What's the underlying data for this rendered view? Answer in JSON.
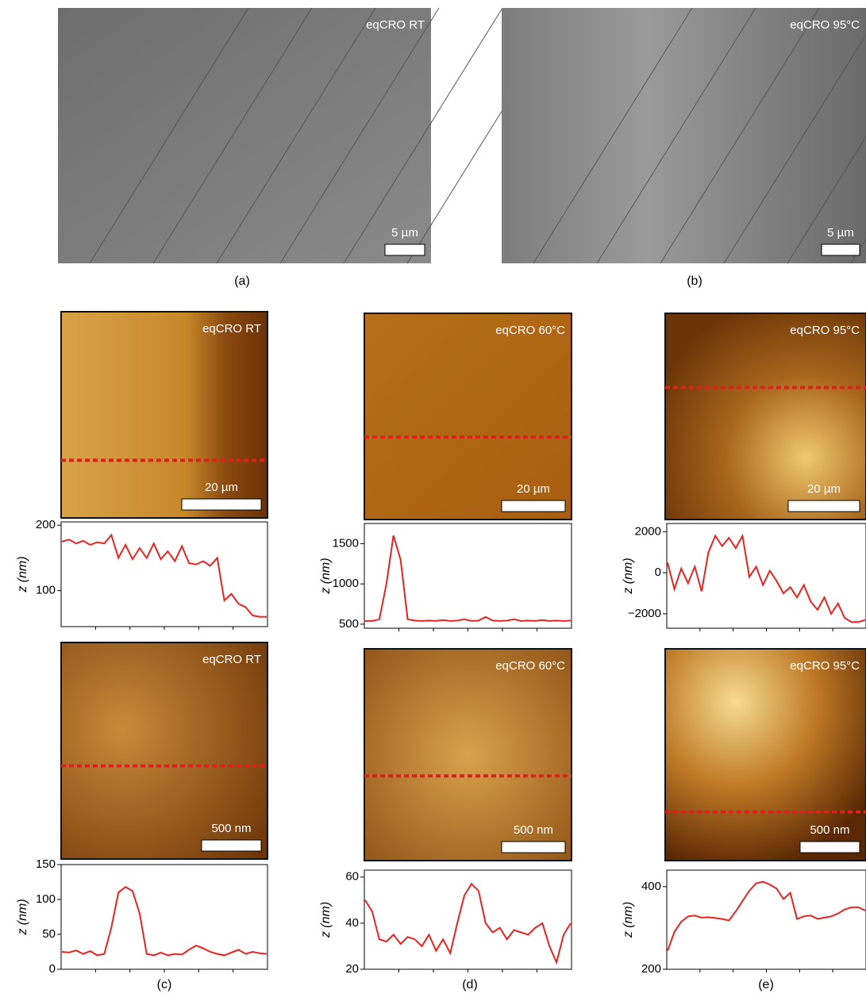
{
  "panels": [
    {
      "label": "eqCRO RT",
      "scale": "5 µm"
    },
    {
      "label": "eqCRO 95°C",
      "scale": "5 µm"
    },
    {
      "label": "eqCRO RT",
      "scale": "20 µm"
    },
    {
      "label": "eqCRO 60°C",
      "scale": "20 µm"
    },
    {
      "label": "eqCRO 95°C",
      "scale": "20 µm"
    },
    {
      "label": "eqCRO RT",
      "scale": "500 nm"
    },
    {
      "label": "eqCRO 60°C",
      "scale": "500 nm"
    },
    {
      "label": "eqCRO 95°C",
      "scale": "500 nm"
    }
  ],
  "captions": [
    "(a)",
    "(b)",
    "(c)",
    "(d)",
    "(e)"
  ],
  "chart_data": [
    {
      "type": "line",
      "ylabel": "z (nm)",
      "color": "#e8231f",
      "ylim": [
        45,
        205
      ],
      "yticks": [
        100,
        200
      ],
      "values": [
        175,
        178,
        172,
        176,
        170,
        174,
        172,
        185,
        150,
        170,
        148,
        165,
        150,
        172,
        148,
        160,
        145,
        168,
        142,
        140,
        145,
        138,
        150,
        85,
        95,
        80,
        75,
        62,
        60,
        60
      ]
    },
    {
      "type": "line",
      "ylabel": "z (nm)",
      "color": "#e8231f",
      "ylim": [
        450,
        1750
      ],
      "yticks": [
        500,
        1000,
        1500
      ],
      "values": [
        540,
        540,
        560,
        1000,
        1600,
        1300,
        560,
        545,
        540,
        545,
        540,
        550,
        540,
        545,
        560,
        540,
        545,
        590,
        545,
        540,
        545,
        560,
        540,
        545,
        540,
        550,
        540,
        545,
        540,
        545
      ]
    },
    {
      "type": "line",
      "ylabel": "z (nm)",
      "color": "#e8231f",
      "ylim": [
        -2700,
        2400
      ],
      "yticks": [
        {
          "value": -2000,
          "label": "−2000"
        },
        0,
        2000
      ],
      "values": [
        500,
        -800,
        200,
        -500,
        300,
        -900,
        1000,
        1800,
        1300,
        1700,
        1200,
        1800,
        -200,
        300,
        -600,
        100,
        -400,
        -1000,
        -700,
        -1200,
        -600,
        -1400,
        -1800,
        -1200,
        -2000,
        -1500,
        -2200,
        -2400,
        -2400,
        -2300
      ]
    },
    {
      "type": "line",
      "ylabel": "z (nm)",
      "color": "#e8231f",
      "ylim": [
        0,
        150
      ],
      "yticks": [
        0,
        50,
        100,
        150
      ],
      "values": [
        25,
        24,
        27,
        22,
        26,
        20,
        22,
        60,
        110,
        118,
        112,
        80,
        22,
        20,
        24,
        20,
        22,
        21,
        28,
        34,
        30,
        25,
        22,
        20,
        24,
        28,
        22,
        25,
        23,
        22
      ]
    },
    {
      "type": "line",
      "ylabel": "z (nm)",
      "color": "#e8231f",
      "ylim": [
        20,
        63
      ],
      "yticks": [
        20,
        40,
        60
      ],
      "values": [
        50,
        45,
        33,
        32,
        35,
        31,
        34,
        33,
        30,
        35,
        28,
        33,
        27,
        40,
        52,
        57,
        54,
        40,
        36,
        38,
        33,
        37,
        36,
        35,
        38,
        40,
        30,
        23,
        35,
        40
      ]
    },
    {
      "type": "line",
      "ylabel": "z (nm)",
      "color": "#e8231f",
      "ylim": [
        200,
        440
      ],
      "yticks": [
        200,
        400
      ],
      "values": [
        245,
        290,
        315,
        328,
        330,
        325,
        326,
        324,
        322,
        318,
        340,
        365,
        390,
        408,
        412,
        405,
        395,
        370,
        385,
        322,
        328,
        330,
        322,
        325,
        328,
        335,
        345,
        350,
        350,
        342
      ]
    }
  ]
}
